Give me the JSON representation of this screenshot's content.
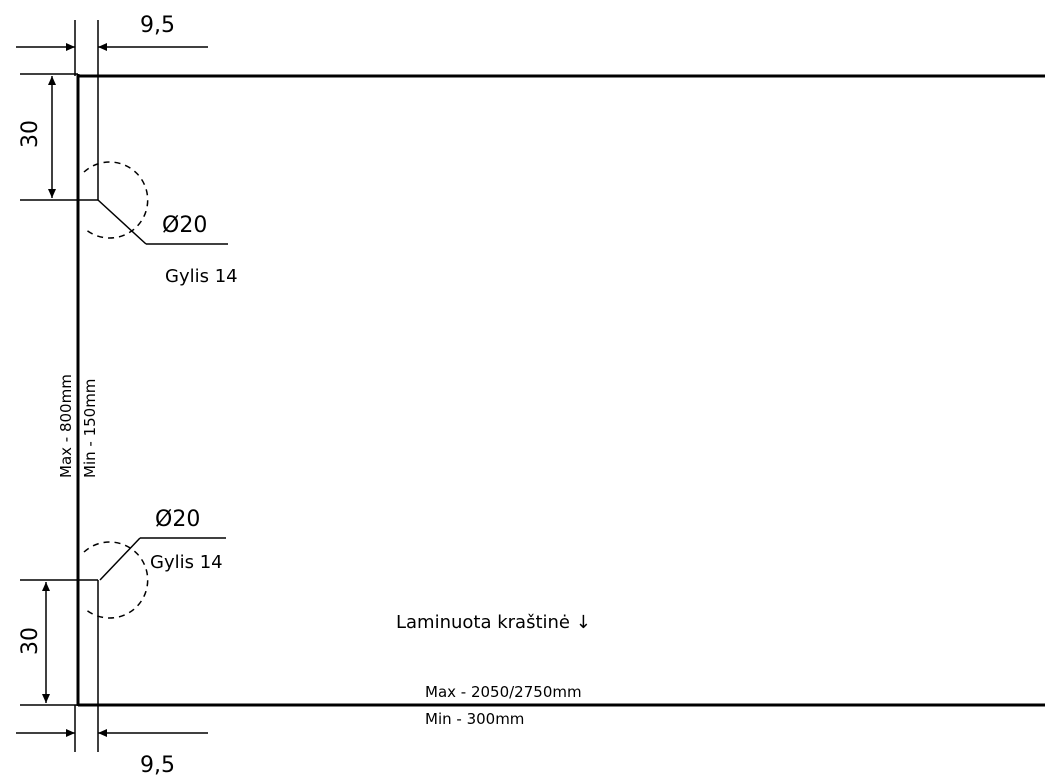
{
  "drawing": {
    "dim_top_width": "9,5",
    "dim_bottom_width": "9,5",
    "dim_top_height": "30",
    "dim_bottom_height": "30",
    "hole_top_diameter": "Ø20",
    "hole_top_depth": "Gylis 14",
    "hole_bottom_diameter": "Ø20",
    "hole_bottom_depth": "Gylis 14",
    "height_max": "Max - 800mm",
    "height_min": "Min - 150mm",
    "laminated_edge": "Laminuota kraštinė ↓",
    "length_max": "Max - 2050/2750mm",
    "length_min": "Min - 300mm"
  },
  "colors": {
    "line": "#000000",
    "background": "#ffffff"
  }
}
